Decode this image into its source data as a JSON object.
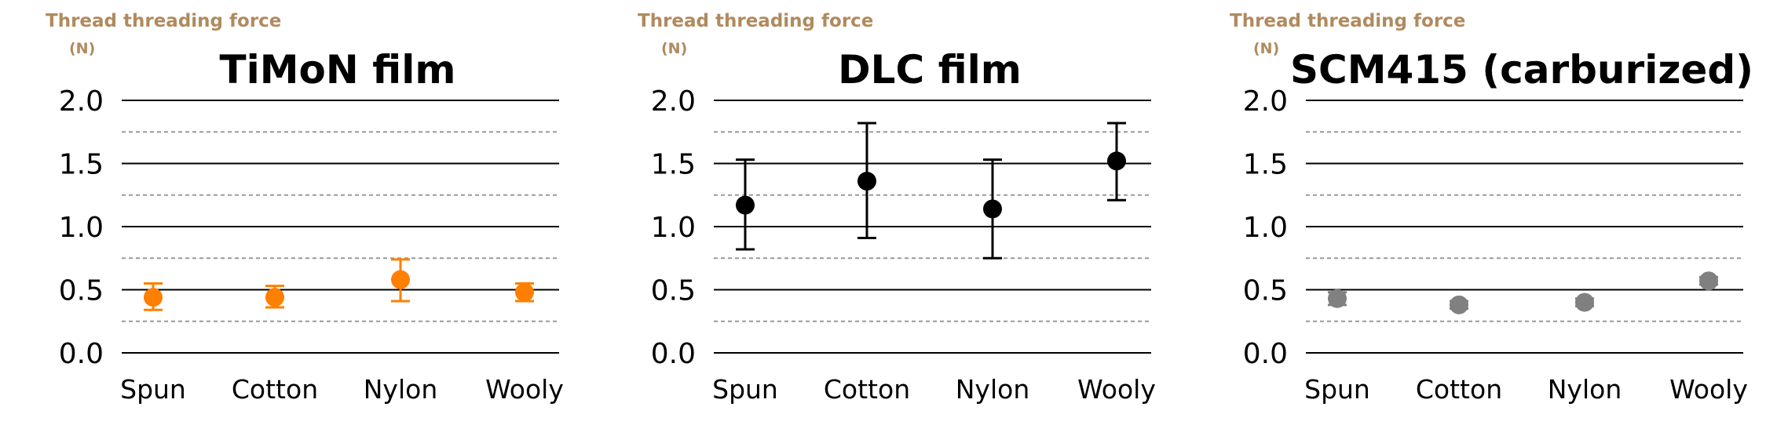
{
  "chart_data": [
    {
      "type": "scatter",
      "title": "TiMoN film",
      "ylabel": "Thread threading force",
      "yunit": "(N)",
      "categories": [
        "Spun",
        "Cotton",
        "Nylon",
        "Wooly"
      ],
      "values": [
        0.44,
        0.44,
        0.58,
        0.48
      ],
      "error_low": [
        0.34,
        0.36,
        0.41,
        0.41
      ],
      "error_high": [
        0.55,
        0.53,
        0.74,
        0.55
      ],
      "ylim": [
        0,
        2.0
      ],
      "yticks": [
        "0.0",
        "0.5",
        "1.0",
        "1.5",
        "2.0"
      ],
      "color": "#ff7f00",
      "grid": true
    },
    {
      "type": "scatter",
      "title": "DLC film",
      "ylabel": "Thread threading force",
      "yunit": "(N)",
      "categories": [
        "Spun",
        "Cotton",
        "Nylon",
        "Wooly"
      ],
      "values": [
        1.17,
        1.36,
        1.14,
        1.52
      ],
      "error_low": [
        0.82,
        0.91,
        0.75,
        1.21
      ],
      "error_high": [
        1.53,
        1.82,
        1.53,
        1.82
      ],
      "ylim": [
        0,
        2.0
      ],
      "yticks": [
        "0.0",
        "0.5",
        "1.0",
        "1.5",
        "2.0"
      ],
      "color": "#000000",
      "grid": true
    },
    {
      "type": "scatter",
      "title": "SCM415 (carburized)",
      "ylabel": "Thread threading force",
      "yunit": "(N)",
      "categories": [
        "Spun",
        "Cotton",
        "Nylon",
        "Wooly"
      ],
      "values": [
        0.43,
        0.38,
        0.4,
        0.57
      ],
      "error_low": [
        0.38,
        0.35,
        0.37,
        0.54
      ],
      "error_high": [
        0.48,
        0.41,
        0.43,
        0.6
      ],
      "ylim": [
        0,
        2.0
      ],
      "yticks": [
        "0.0",
        "0.5",
        "1.0",
        "1.5",
        "2.0"
      ],
      "color": "#808080",
      "grid": true
    }
  ]
}
